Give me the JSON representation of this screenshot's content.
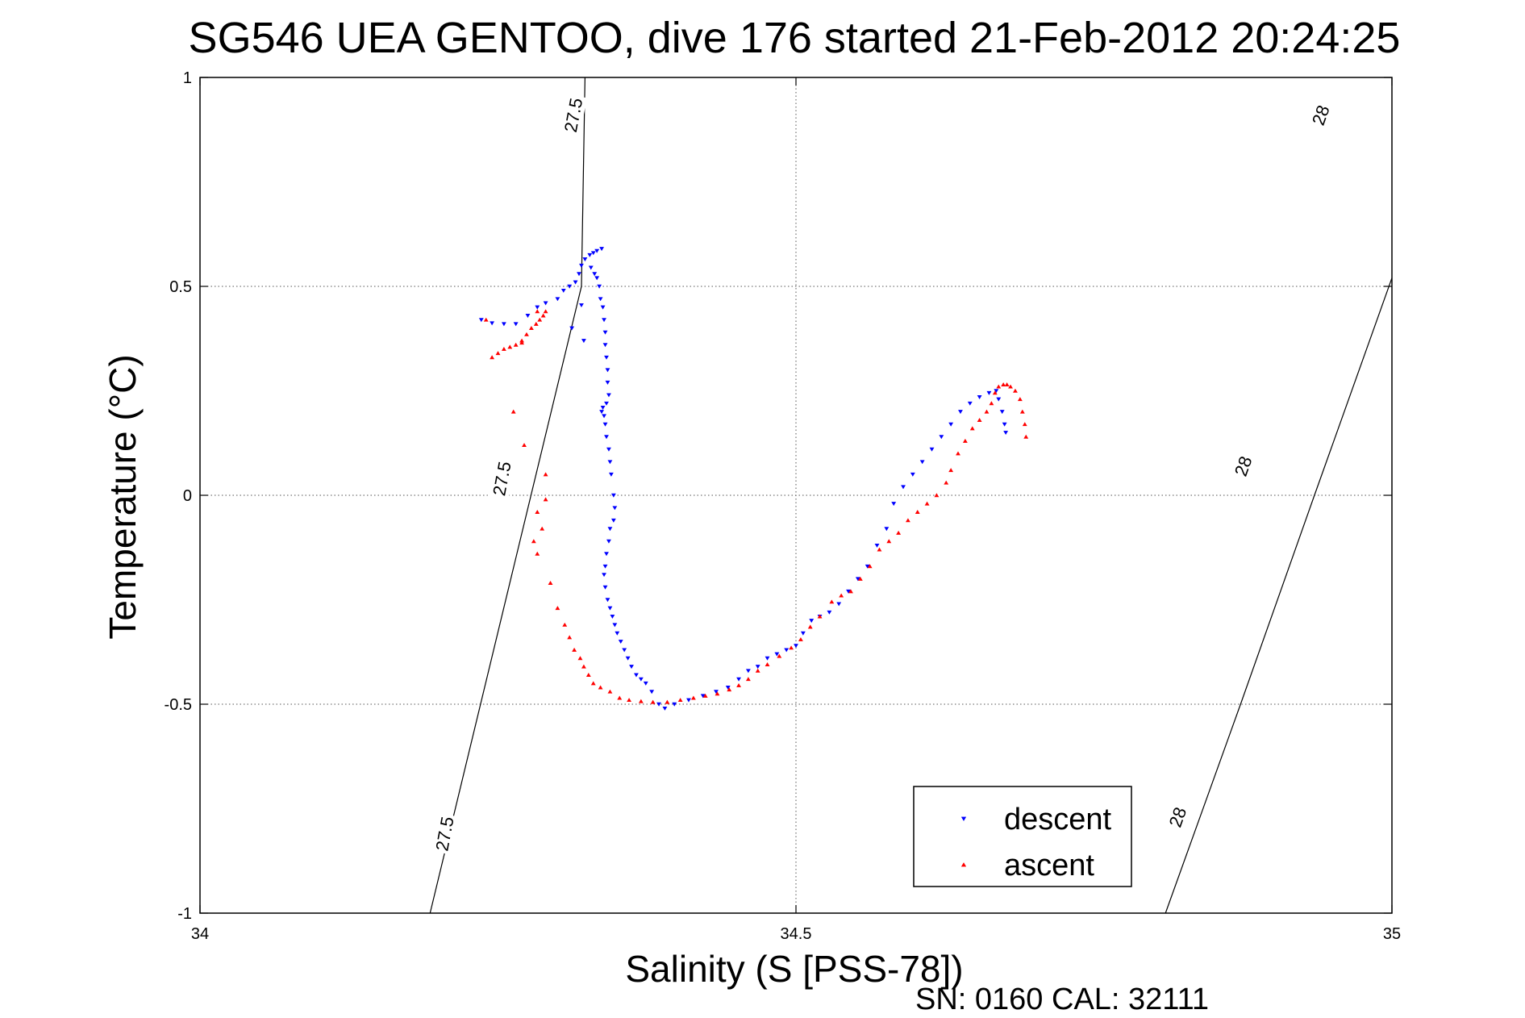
{
  "chart_data": {
    "type": "scatter",
    "title": "SG546 UEA GENTOO, dive 176 started 21-Feb-2012 20:24:25",
    "xlabel": "Salinity (S [PSS-78])",
    "ylabel": "Temperature (°C)",
    "xlim": [
      34,
      35
    ],
    "ylim": [
      -1,
      1
    ],
    "x_ticks": [
      "34",
      "34.5",
      "35"
    ],
    "y_ticks": [
      "-1",
      "-0.5",
      "0",
      "0.5",
      "1"
    ],
    "x_tick_values": [
      34,
      34.5,
      35
    ],
    "y_tick_values": [
      -1,
      -0.5,
      0,
      0.5,
      1
    ],
    "grid": true,
    "legend_position": "lower-right",
    "footer": "SN: 0160  CAL: 32111",
    "contours": [
      {
        "label": "27.5",
        "points": [
          [
            34.193,
            -1.0
          ],
          [
            34.32,
            0.5
          ],
          [
            34.323,
            1.0
          ]
        ],
        "labels_at": [
          [
            34.205,
            -0.81
          ],
          [
            34.253,
            0.04
          ],
          [
            34.313,
            0.91
          ]
        ]
      },
      {
        "label": "28",
        "points": [
          [
            34.81,
            -1.0
          ],
          [
            34.873,
            -0.5
          ],
          [
            34.935,
            0.0
          ],
          [
            35.0,
            0.52
          ]
        ],
        "labels_at": [
          [
            34.82,
            -0.77
          ],
          [
            34.875,
            0.07
          ],
          [
            34.94,
            0.91
          ]
        ]
      }
    ],
    "series": [
      {
        "name": "descent",
        "marker": "triangle-down",
        "color": "#0000ff",
        "points": [
          [
            34.236,
            0.42
          ],
          [
            34.245,
            0.412
          ],
          [
            34.255,
            0.41
          ],
          [
            34.265,
            0.41
          ],
          [
            34.275,
            0.43
          ],
          [
            34.283,
            0.45
          ],
          [
            34.29,
            0.46
          ],
          [
            34.3,
            0.47
          ],
          [
            34.305,
            0.49
          ],
          [
            34.31,
            0.5
          ],
          [
            34.315,
            0.51
          ],
          [
            34.318,
            0.53
          ],
          [
            34.32,
            0.55
          ],
          [
            34.323,
            0.565
          ],
          [
            34.327,
            0.575
          ],
          [
            34.33,
            0.58
          ],
          [
            34.333,
            0.585
          ],
          [
            34.337,
            0.59
          ],
          [
            34.32,
            0.455
          ],
          [
            34.312,
            0.4
          ],
          [
            34.322,
            0.37
          ],
          [
            34.328,
            0.545
          ],
          [
            34.331,
            0.53
          ],
          [
            34.333,
            0.52
          ],
          [
            34.335,
            0.5
          ],
          [
            34.336,
            0.47
          ],
          [
            34.338,
            0.45
          ],
          [
            34.339,
            0.42
          ],
          [
            34.34,
            0.39
          ],
          [
            34.34,
            0.36
          ],
          [
            34.341,
            0.33
          ],
          [
            34.342,
            0.3
          ],
          [
            34.342,
            0.27
          ],
          [
            34.343,
            0.24
          ],
          [
            34.341,
            0.22
          ],
          [
            34.338,
            0.21
          ],
          [
            34.337,
            0.2
          ],
          [
            34.339,
            0.19
          ],
          [
            34.34,
            0.17
          ],
          [
            34.341,
            0.14
          ],
          [
            34.343,
            0.11
          ],
          [
            34.344,
            0.08
          ],
          [
            34.345,
            0.05
          ],
          [
            34.347,
            0.0
          ],
          [
            34.348,
            -0.03
          ],
          [
            34.347,
            -0.06
          ],
          [
            34.344,
            -0.08
          ],
          [
            34.343,
            -0.11
          ],
          [
            34.341,
            -0.14
          ],
          [
            34.34,
            -0.17
          ],
          [
            34.339,
            -0.19
          ],
          [
            34.34,
            -0.22
          ],
          [
            34.342,
            -0.25
          ],
          [
            34.344,
            -0.27
          ],
          [
            34.346,
            -0.29
          ],
          [
            34.348,
            -0.31
          ],
          [
            34.35,
            -0.33
          ],
          [
            34.353,
            -0.35
          ],
          [
            34.356,
            -0.37
          ],
          [
            34.359,
            -0.39
          ],
          [
            34.362,
            -0.41
          ],
          [
            34.366,
            -0.43
          ],
          [
            34.37,
            -0.44
          ],
          [
            34.374,
            -0.45
          ],
          [
            34.379,
            -0.47
          ],
          [
            34.385,
            -0.5
          ],
          [
            34.39,
            -0.51
          ],
          [
            34.398,
            -0.5
          ],
          [
            34.41,
            -0.49
          ],
          [
            34.422,
            -0.48
          ],
          [
            34.433,
            -0.47
          ],
          [
            34.443,
            -0.46
          ],
          [
            34.452,
            -0.44
          ],
          [
            34.46,
            -0.42
          ],
          [
            34.468,
            -0.41
          ],
          [
            34.476,
            -0.39
          ],
          [
            34.484,
            -0.38
          ],
          [
            34.492,
            -0.37
          ],
          [
            34.5,
            -0.36
          ],
          [
            34.506,
            -0.33
          ],
          [
            34.513,
            -0.3
          ],
          [
            34.52,
            -0.29
          ],
          [
            34.528,
            -0.28
          ],
          [
            34.536,
            -0.26
          ],
          [
            34.544,
            -0.23
          ],
          [
            34.552,
            -0.2
          ],
          [
            34.56,
            -0.17
          ],
          [
            34.568,
            -0.12
          ],
          [
            34.576,
            -0.08
          ],
          [
            34.582,
            -0.02
          ],
          [
            34.59,
            0.02
          ],
          [
            34.598,
            0.05
          ],
          [
            34.606,
            0.08
          ],
          [
            34.614,
            0.11
          ],
          [
            34.622,
            0.14
          ],
          [
            34.63,
            0.17
          ],
          [
            34.638,
            0.2
          ],
          [
            34.646,
            0.22
          ],
          [
            34.654,
            0.235
          ],
          [
            34.662,
            0.245
          ],
          [
            34.668,
            0.25
          ],
          [
            34.67,
            0.23
          ],
          [
            34.673,
            0.2
          ],
          [
            34.675,
            0.17
          ],
          [
            34.676,
            0.15
          ]
        ]
      },
      {
        "name": "ascent",
        "marker": "triangle-up",
        "color": "#ff0000",
        "points": [
          [
            34.24,
            0.42
          ],
          [
            34.245,
            0.33
          ],
          [
            34.25,
            0.34
          ],
          [
            34.255,
            0.35
          ],
          [
            34.26,
            0.355
          ],
          [
            34.265,
            0.36
          ],
          [
            34.27,
            0.37
          ],
          [
            34.274,
            0.385
          ],
          [
            34.278,
            0.4
          ],
          [
            34.282,
            0.41
          ],
          [
            34.285,
            0.42
          ],
          [
            34.288,
            0.43
          ],
          [
            34.29,
            0.44
          ],
          [
            34.283,
            0.44
          ],
          [
            34.27,
            0.365
          ],
          [
            34.263,
            0.2
          ],
          [
            34.272,
            0.12
          ],
          [
            34.29,
            0.05
          ],
          [
            34.29,
            -0.01
          ],
          [
            34.283,
            -0.04
          ],
          [
            34.287,
            -0.08
          ],
          [
            34.28,
            -0.11
          ],
          [
            34.283,
            -0.14
          ],
          [
            34.294,
            -0.21
          ],
          [
            34.3,
            -0.27
          ],
          [
            34.306,
            -0.31
          ],
          [
            34.31,
            -0.34
          ],
          [
            34.314,
            -0.37
          ],
          [
            34.319,
            -0.39
          ],
          [
            34.322,
            -0.41
          ],
          [
            34.326,
            -0.43
          ],
          [
            34.33,
            -0.45
          ],
          [
            34.336,
            -0.46
          ],
          [
            34.344,
            -0.47
          ],
          [
            34.352,
            -0.485
          ],
          [
            34.36,
            -0.49
          ],
          [
            34.37,
            -0.493
          ],
          [
            34.38,
            -0.495
          ],
          [
            34.392,
            -0.495
          ],
          [
            34.403,
            -0.49
          ],
          [
            34.414,
            -0.485
          ],
          [
            34.424,
            -0.48
          ],
          [
            34.434,
            -0.475
          ],
          [
            34.444,
            -0.465
          ],
          [
            34.452,
            -0.455
          ],
          [
            34.46,
            -0.44
          ],
          [
            34.468,
            -0.42
          ],
          [
            34.476,
            -0.405
          ],
          [
            34.486,
            -0.385
          ],
          [
            34.496,
            -0.365
          ],
          [
            34.504,
            -0.345
          ],
          [
            34.512,
            -0.315
          ],
          [
            34.52,
            -0.29
          ],
          [
            34.53,
            -0.255
          ],
          [
            34.538,
            -0.24
          ],
          [
            34.546,
            -0.23
          ],
          [
            34.554,
            -0.2
          ],
          [
            34.562,
            -0.17
          ],
          [
            34.57,
            -0.13
          ],
          [
            34.578,
            -0.11
          ],
          [
            34.586,
            -0.09
          ],
          [
            34.594,
            -0.06
          ],
          [
            34.602,
            -0.04
          ],
          [
            34.61,
            -0.02
          ],
          [
            34.618,
            0.0
          ],
          [
            34.626,
            0.03
          ],
          [
            34.63,
            0.06
          ],
          [
            34.636,
            0.1
          ],
          [
            34.642,
            0.13
          ],
          [
            34.648,
            0.16
          ],
          [
            34.654,
            0.18
          ],
          [
            34.66,
            0.2
          ],
          [
            34.664,
            0.22
          ],
          [
            34.667,
            0.245
          ],
          [
            34.67,
            0.26
          ],
          [
            34.674,
            0.265
          ],
          [
            34.677,
            0.265
          ],
          [
            34.68,
            0.26
          ],
          [
            34.684,
            0.25
          ],
          [
            34.688,
            0.23
          ],
          [
            34.69,
            0.2
          ],
          [
            34.692,
            0.17
          ],
          [
            34.693,
            0.14
          ]
        ]
      }
    ]
  }
}
